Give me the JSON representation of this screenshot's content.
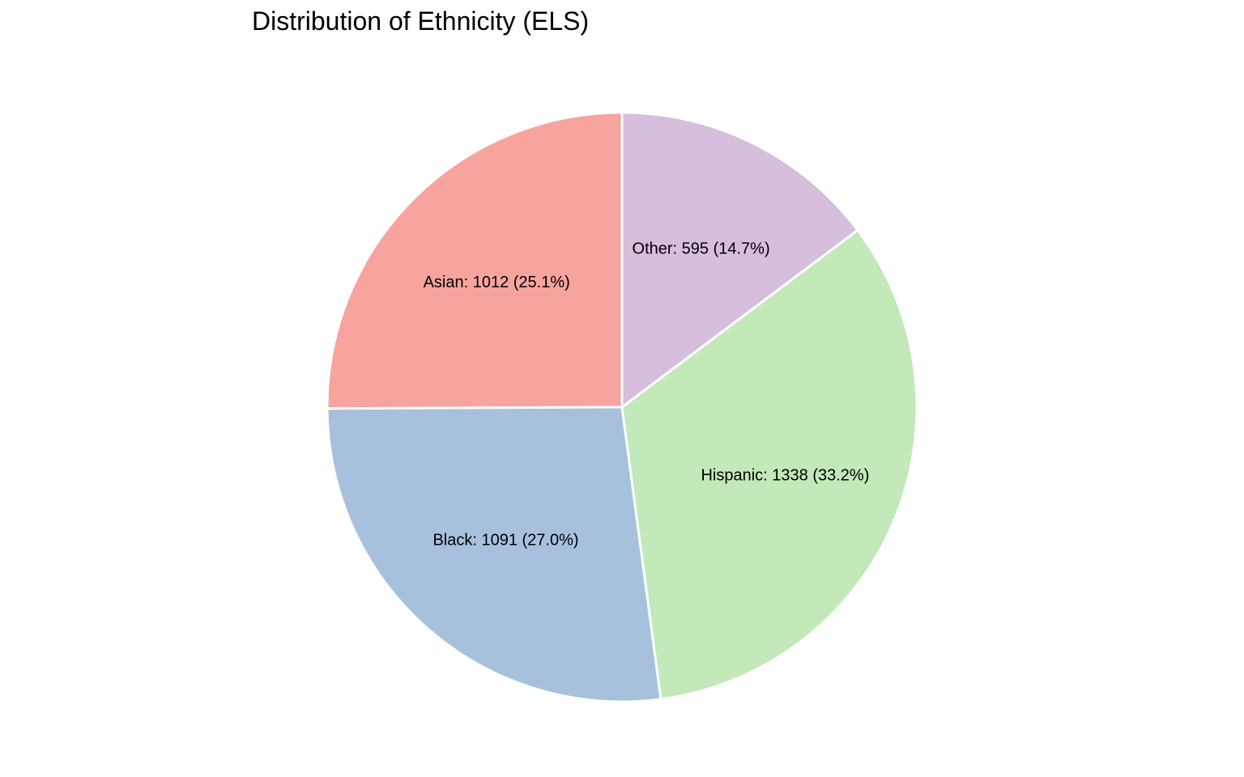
{
  "chart_data": {
    "type": "pie",
    "title": "Distribution of Ethnicity (ELS)",
    "slices": [
      {
        "label": "Asian",
        "value": 1012,
        "percent": "25.1%",
        "text": "Asian: 1012 (25.1%)",
        "color": "#f7a39e"
      },
      {
        "label": "Black",
        "value": 1091,
        "percent": "27.0%",
        "text": "Black: 1091 (27.0%)",
        "color": "#a7c1dd"
      },
      {
        "label": "Hispanic",
        "value": 1338,
        "percent": "33.2%",
        "text": "Hispanic: 1338 (33.2%)",
        "color": "#c3e8b9"
      },
      {
        "label": "Other",
        "value": 595,
        "percent": "14.7%",
        "text": "Other: 595 (14.7%)",
        "color": "#d6bedc"
      }
    ],
    "start_angle_deg": 90,
    "direction": "counterclockwise",
    "legend": "none"
  }
}
